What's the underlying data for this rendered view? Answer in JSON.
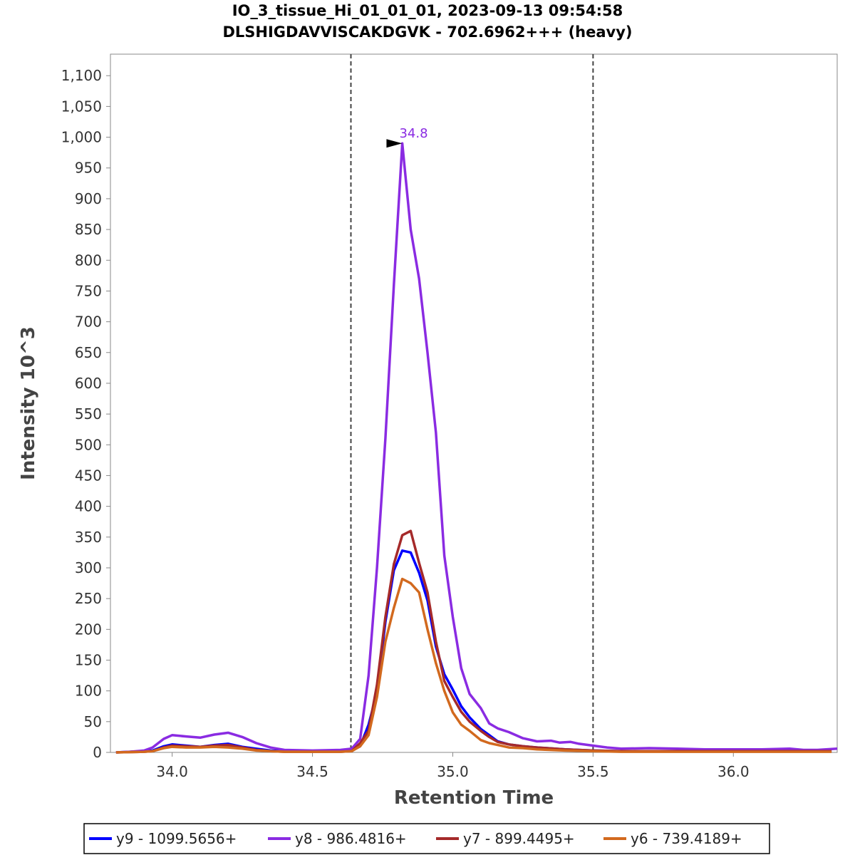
{
  "chart_data": {
    "type": "line",
    "title": "IO_3_tissue_Hi_01_01_01, 2023-09-13 09:54:58",
    "subtitle": "DLSHIGDAVVISCAKDGVK - 702.6962+++ (heavy)",
    "xlabel": "Retention Time",
    "ylabel": "Intensity 10^3",
    "xlim": [
      33.78,
      36.37
    ],
    "ylim": [
      0,
      1135
    ],
    "x_ticks": [
      34.0,
      34.5,
      35.0,
      35.5,
      36.0
    ],
    "x_tick_labels": [
      "34.0",
      "34.5",
      "35.0",
      "35.5",
      "36.0"
    ],
    "y_ticks": [
      0,
      50,
      100,
      150,
      200,
      250,
      300,
      350,
      400,
      450,
      500,
      550,
      600,
      650,
      700,
      750,
      800,
      850,
      900,
      950,
      1000,
      1050,
      1100
    ],
    "y_tick_labels": [
      "0",
      "50",
      "100",
      "150",
      "200",
      "250",
      "300",
      "350",
      "400",
      "450",
      "500",
      "550",
      "600",
      "650",
      "700",
      "750",
      "800",
      "850",
      "900",
      "950",
      "1,000",
      "1,050",
      "1,100"
    ],
    "boundaries": [
      34.637,
      35.5
    ],
    "peak_annotation": {
      "x": 34.84,
      "y": 990,
      "label": "34.8"
    },
    "legend_position": "bottom",
    "series": [
      {
        "name": "y9 - 1099.5656+",
        "color": "#0000ff",
        "points": [
          [
            33.8,
            0
          ],
          [
            33.9,
            2
          ],
          [
            33.93,
            3
          ],
          [
            33.97,
            10
          ],
          [
            34.0,
            13
          ],
          [
            34.05,
            11
          ],
          [
            34.1,
            9
          ],
          [
            34.15,
            12
          ],
          [
            34.2,
            14
          ],
          [
            34.25,
            9
          ],
          [
            34.3,
            6
          ],
          [
            34.35,
            3
          ],
          [
            34.4,
            2
          ],
          [
            34.5,
            2
          ],
          [
            34.6,
            2
          ],
          [
            34.64,
            3
          ],
          [
            34.67,
            10
          ],
          [
            34.7,
            45
          ],
          [
            34.73,
            97
          ],
          [
            34.76,
            212
          ],
          [
            34.79,
            296
          ],
          [
            34.82,
            328
          ],
          [
            34.85,
            325
          ],
          [
            34.88,
            292
          ],
          [
            34.91,
            247
          ],
          [
            34.94,
            172
          ],
          [
            34.97,
            127
          ],
          [
            35.0,
            102
          ],
          [
            35.03,
            75
          ],
          [
            35.06,
            57
          ],
          [
            35.1,
            38
          ],
          [
            35.13,
            28
          ],
          [
            35.16,
            18
          ],
          [
            35.2,
            13
          ],
          [
            35.25,
            10
          ],
          [
            35.3,
            8
          ],
          [
            35.4,
            5
          ],
          [
            35.5,
            3
          ],
          [
            35.6,
            2
          ],
          [
            35.8,
            2
          ],
          [
            36.0,
            2
          ],
          [
            36.2,
            2
          ],
          [
            36.35,
            2
          ]
        ]
      },
      {
        "name": "y8 - 986.4816+",
        "color": "#8a2be2",
        "points": [
          [
            33.8,
            0
          ],
          [
            33.85,
            1
          ],
          [
            33.9,
            3
          ],
          [
            33.93,
            8
          ],
          [
            33.97,
            22
          ],
          [
            34.0,
            28
          ],
          [
            34.05,
            26
          ],
          [
            34.1,
            24
          ],
          [
            34.15,
            29
          ],
          [
            34.2,
            32
          ],
          [
            34.25,
            25
          ],
          [
            34.3,
            15
          ],
          [
            34.35,
            8
          ],
          [
            34.4,
            4
          ],
          [
            34.5,
            3
          ],
          [
            34.6,
            4
          ],
          [
            34.64,
            6
          ],
          [
            34.67,
            22
          ],
          [
            34.7,
            125
          ],
          [
            34.73,
            300
          ],
          [
            34.76,
            510
          ],
          [
            34.79,
            760
          ],
          [
            34.82,
            990
          ],
          [
            34.85,
            850
          ],
          [
            34.88,
            770
          ],
          [
            34.91,
            650
          ],
          [
            34.94,
            520
          ],
          [
            34.97,
            320
          ],
          [
            35.0,
            220
          ],
          [
            35.03,
            137
          ],
          [
            35.06,
            95
          ],
          [
            35.1,
            72
          ],
          [
            35.13,
            47
          ],
          [
            35.16,
            39
          ],
          [
            35.2,
            33
          ],
          [
            35.25,
            23
          ],
          [
            35.3,
            18
          ],
          [
            35.35,
            19
          ],
          [
            35.38,
            16
          ],
          [
            35.42,
            17
          ],
          [
            35.45,
            14
          ],
          [
            35.5,
            11
          ],
          [
            35.55,
            8
          ],
          [
            35.6,
            6
          ],
          [
            35.7,
            7
          ],
          [
            35.8,
            6
          ],
          [
            35.9,
            5
          ],
          [
            36.0,
            5
          ],
          [
            36.1,
            5
          ],
          [
            36.2,
            6
          ],
          [
            36.25,
            4
          ],
          [
            36.3,
            4
          ],
          [
            36.37,
            6
          ]
        ]
      },
      {
        "name": "y7 - 899.4495+",
        "color": "#a52a2a",
        "points": [
          [
            33.8,
            0
          ],
          [
            33.9,
            1
          ],
          [
            33.93,
            2
          ],
          [
            33.97,
            8
          ],
          [
            34.0,
            11
          ],
          [
            34.05,
            10
          ],
          [
            34.1,
            9
          ],
          [
            34.15,
            11
          ],
          [
            34.2,
            12
          ],
          [
            34.25,
            8
          ],
          [
            34.3,
            4
          ],
          [
            34.35,
            2
          ],
          [
            34.4,
            1
          ],
          [
            34.5,
            1
          ],
          [
            34.6,
            1
          ],
          [
            34.64,
            2
          ],
          [
            34.67,
            15
          ],
          [
            34.7,
            35
          ],
          [
            34.73,
            110
          ],
          [
            34.76,
            220
          ],
          [
            34.79,
            306
          ],
          [
            34.82,
            353
          ],
          [
            34.85,
            360
          ],
          [
            34.88,
            308
          ],
          [
            34.91,
            260
          ],
          [
            34.94,
            180
          ],
          [
            34.97,
            116
          ],
          [
            35.0,
            90
          ],
          [
            35.03,
            66
          ],
          [
            35.06,
            50
          ],
          [
            35.1,
            35
          ],
          [
            35.13,
            25
          ],
          [
            35.16,
            17
          ],
          [
            35.2,
            13
          ],
          [
            35.25,
            10
          ],
          [
            35.3,
            8
          ],
          [
            35.4,
            5
          ],
          [
            35.5,
            3
          ],
          [
            35.6,
            2
          ],
          [
            35.8,
            2
          ],
          [
            36.0,
            2
          ],
          [
            36.2,
            2
          ],
          [
            36.35,
            2
          ]
        ]
      },
      {
        "name": "y6 - 739.4189+",
        "color": "#d2691e",
        "points": [
          [
            33.8,
            0
          ],
          [
            33.9,
            1
          ],
          [
            33.93,
            2
          ],
          [
            33.97,
            7
          ],
          [
            34.0,
            9
          ],
          [
            34.05,
            8
          ],
          [
            34.1,
            8
          ],
          [
            34.15,
            9
          ],
          [
            34.2,
            8
          ],
          [
            34.25,
            6
          ],
          [
            34.3,
            3
          ],
          [
            34.35,
            2
          ],
          [
            34.4,
            1
          ],
          [
            34.5,
            1
          ],
          [
            34.6,
            1
          ],
          [
            34.64,
            2
          ],
          [
            34.67,
            10
          ],
          [
            34.7,
            28
          ],
          [
            34.73,
            90
          ],
          [
            34.76,
            180
          ],
          [
            34.79,
            235
          ],
          [
            34.82,
            282
          ],
          [
            34.85,
            275
          ],
          [
            34.88,
            260
          ],
          [
            34.91,
            200
          ],
          [
            34.94,
            145
          ],
          [
            34.97,
            100
          ],
          [
            35.0,
            65
          ],
          [
            35.03,
            45
          ],
          [
            35.06,
            35
          ],
          [
            35.1,
            20
          ],
          [
            35.13,
            15
          ],
          [
            35.16,
            12
          ],
          [
            35.2,
            8
          ],
          [
            35.25,
            7
          ],
          [
            35.3,
            5
          ],
          [
            35.4,
            3
          ],
          [
            35.5,
            2
          ],
          [
            35.6,
            1
          ],
          [
            35.8,
            1
          ],
          [
            36.0,
            1
          ],
          [
            36.2,
            1
          ],
          [
            36.35,
            1
          ]
        ]
      }
    ]
  }
}
